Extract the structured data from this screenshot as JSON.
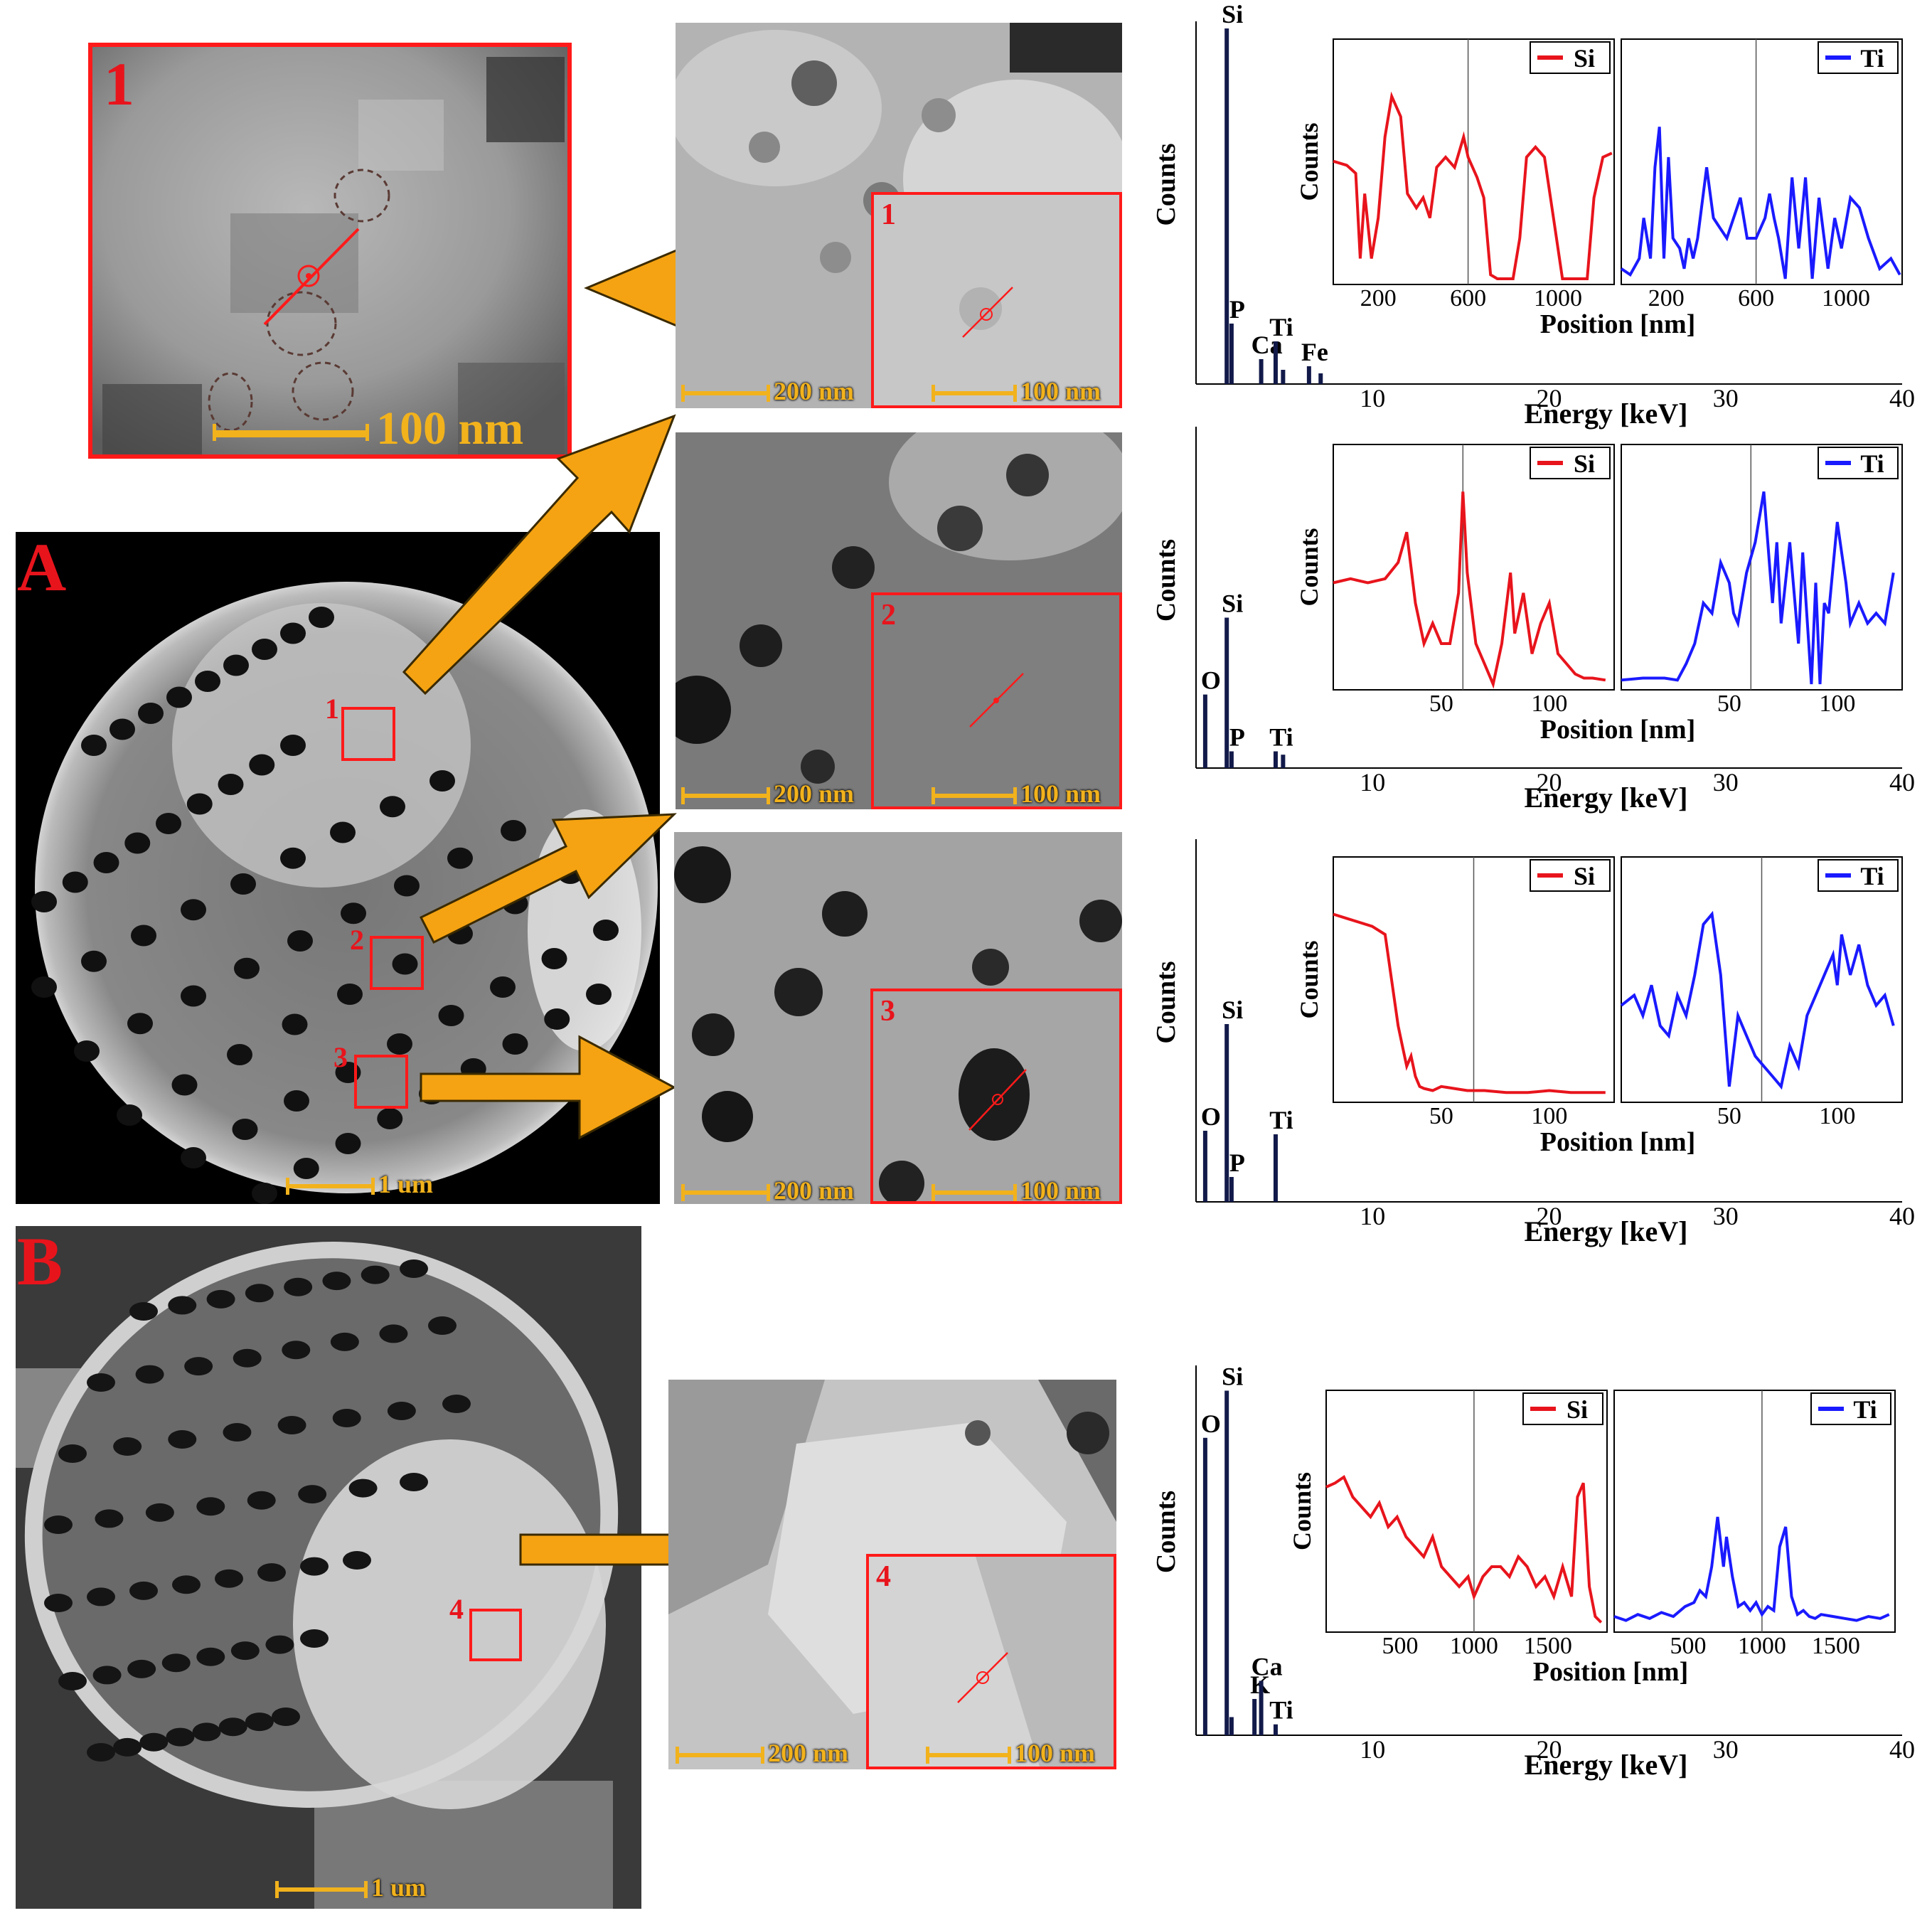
{
  "panels": {
    "A_label": "A",
    "B_label": "B",
    "zoom_label": "1",
    "zoom_scale": "100 nm",
    "overview_A_scale": "1 um",
    "overview_B_scale": "1 um",
    "region_labels": [
      "1",
      "2",
      "3",
      "4"
    ],
    "mid_scale_large": "200 nm",
    "mid_scale_small": "100 nm"
  },
  "chart_data": [
    {
      "type": "bar",
      "title": "",
      "xlabel": "Energy [keV]",
      "ylabel": "Counts",
      "xlim": [
        0,
        40
      ],
      "xticks": [
        10,
        20,
        30,
        40
      ],
      "peaks": [
        {
          "label": "Si",
          "energy": 1.74,
          "value": 1.0
        },
        {
          "label": "P",
          "energy": 2.01,
          "value": 0.17
        },
        {
          "label": "Ca",
          "energy": 3.69,
          "value": 0.07
        },
        {
          "label": "Ti",
          "energy": 4.51,
          "value": 0.12
        },
        {
          "label": "",
          "energy": 4.93,
          "value": 0.04
        },
        {
          "label": "Fe",
          "energy": 6.4,
          "value": 0.05
        },
        {
          "label": "",
          "energy": 7.06,
          "value": 0.03
        }
      ],
      "insets": [
        {
          "type": "line",
          "series": [
            {
              "name": "Si",
              "color": "#e8141c"
            }
          ],
          "xlabel": "Position [nm]",
          "ylabel": "Counts",
          "xlim": [
            0,
            1250
          ],
          "xticks": [
            200,
            600,
            1000
          ],
          "marker_x": 600,
          "x": [
            0,
            60,
            100,
            120,
            140,
            170,
            200,
            230,
            260,
            300,
            330,
            370,
            400,
            430,
            460,
            500,
            540,
            580,
            600,
            640,
            670,
            700,
            730,
            770,
            800,
            830,
            860,
            900,
            940,
            980,
            1020,
            1060,
            1100,
            1130,
            1160,
            1200,
            1240
          ],
          "y": [
            0.58,
            0.56,
            0.52,
            0.1,
            0.42,
            0.1,
            0.3,
            0.7,
            0.9,
            0.8,
            0.42,
            0.35,
            0.4,
            0.3,
            0.55,
            0.6,
            0.55,
            0.7,
            0.6,
            0.5,
            0.4,
            0.02,
            0.0,
            0.0,
            0.0,
            0.2,
            0.6,
            0.65,
            0.6,
            0.3,
            0.0,
            0.0,
            0.0,
            0.0,
            0.4,
            0.6,
            0.62
          ]
        },
        {
          "type": "line",
          "series": [
            {
              "name": "Ti",
              "color": "#1a1aff"
            }
          ],
          "xlabel": "Position [nm]",
          "ylabel": "Counts",
          "xlim": [
            0,
            1250
          ],
          "xticks": [
            200,
            600,
            1000
          ],
          "marker_x": 600,
          "x": [
            0,
            40,
            80,
            100,
            130,
            150,
            170,
            190,
            210,
            230,
            260,
            280,
            300,
            320,
            340,
            380,
            410,
            440,
            470,
            500,
            530,
            560,
            600,
            640,
            660,
            680,
            700,
            730,
            760,
            790,
            820,
            850,
            880,
            920,
            950,
            980,
            1020,
            1060,
            1100,
            1150,
            1200,
            1240
          ],
          "y": [
            0.05,
            0.02,
            0.1,
            0.3,
            0.1,
            0.55,
            0.75,
            0.1,
            0.6,
            0.2,
            0.15,
            0.05,
            0.2,
            0.1,
            0.2,
            0.55,
            0.3,
            0.25,
            0.2,
            0.3,
            0.4,
            0.2,
            0.2,
            0.3,
            0.42,
            0.3,
            0.2,
            0.0,
            0.5,
            0.15,
            0.5,
            0.0,
            0.4,
            0.05,
            0.3,
            0.15,
            0.4,
            0.35,
            0.2,
            0.05,
            0.1,
            0.02
          ]
        }
      ]
    },
    {
      "type": "bar",
      "title": "",
      "xlabel": "Energy [keV]",
      "ylabel": "Counts",
      "xlim": [
        0,
        40
      ],
      "xticks": [
        10,
        20,
        30,
        40
      ],
      "peaks": [
        {
          "label": "O",
          "energy": 0.52,
          "value": 0.22
        },
        {
          "label": "Si",
          "energy": 1.74,
          "value": 0.45
        },
        {
          "label": "P",
          "energy": 2.01,
          "value": 0.05
        },
        {
          "label": "Ti",
          "energy": 4.51,
          "value": 0.05
        },
        {
          "label": "",
          "energy": 4.93,
          "value": 0.04
        }
      ],
      "insets": [
        {
          "type": "line",
          "series": [
            {
              "name": "Si",
              "color": "#e8141c"
            }
          ],
          "xlabel": "Position [nm]",
          "ylabel": "Counts",
          "xlim": [
            0,
            130
          ],
          "xticks": [
            50,
            100
          ],
          "marker_x": 60,
          "x": [
            0,
            8,
            16,
            24,
            30,
            34,
            38,
            42,
            46,
            50,
            54,
            58,
            60,
            62,
            66,
            70,
            74,
            78,
            82,
            84,
            88,
            92,
            96,
            100,
            104,
            108,
            112,
            116,
            120,
            126
          ],
          "y": [
            0.5,
            0.52,
            0.5,
            0.52,
            0.6,
            0.75,
            0.4,
            0.2,
            0.3,
            0.2,
            0.2,
            0.45,
            0.95,
            0.55,
            0.2,
            0.1,
            0.0,
            0.2,
            0.55,
            0.25,
            0.45,
            0.15,
            0.3,
            0.4,
            0.15,
            0.1,
            0.05,
            0.03,
            0.03,
            0.02
          ]
        },
        {
          "type": "line",
          "series": [
            {
              "name": "Ti",
              "color": "#1a1aff"
            }
          ],
          "xlabel": "Position [nm]",
          "ylabel": "Counts",
          "xlim": [
            0,
            130
          ],
          "xticks": [
            50,
            100
          ],
          "marker_x": 60,
          "x": [
            0,
            10,
            20,
            26,
            30,
            34,
            38,
            42,
            46,
            50,
            52,
            54,
            58,
            62,
            66,
            70,
            72,
            74,
            78,
            82,
            84,
            88,
            90,
            92,
            94,
            96,
            100,
            104,
            106,
            110,
            114,
            118,
            122,
            126
          ],
          "y": [
            0.02,
            0.03,
            0.03,
            0.02,
            0.1,
            0.2,
            0.4,
            0.35,
            0.6,
            0.5,
            0.35,
            0.3,
            0.55,
            0.7,
            0.95,
            0.4,
            0.7,
            0.3,
            0.7,
            0.2,
            0.65,
            0.0,
            0.5,
            0.0,
            0.4,
            0.35,
            0.8,
            0.5,
            0.3,
            0.4,
            0.3,
            0.35,
            0.3,
            0.55
          ]
        }
      ]
    },
    {
      "type": "bar",
      "title": "",
      "xlabel": "Energy [keV]",
      "ylabel": "Counts",
      "xlim": [
        0,
        40
      ],
      "xticks": [
        10,
        20,
        30,
        40
      ],
      "peaks": [
        {
          "label": "O",
          "energy": 0.52,
          "value": 0.2
        },
        {
          "label": "Si",
          "energy": 1.74,
          "value": 0.5
        },
        {
          "label": "P",
          "energy": 2.01,
          "value": 0.07
        },
        {
          "label": "Ti",
          "energy": 4.51,
          "value": 0.19
        }
      ],
      "insets": [
        {
          "type": "line",
          "series": [
            {
              "name": "Si",
              "color": "#e8141c"
            }
          ],
          "xlabel": "Position [nm]",
          "ylabel": "Counts",
          "xlim": [
            0,
            130
          ],
          "xticks": [
            50,
            100
          ],
          "marker_x": 65,
          "x": [
            0,
            6,
            12,
            18,
            24,
            28,
            30,
            32,
            34,
            36,
            38,
            40,
            42,
            46,
            50,
            56,
            62,
            70,
            80,
            90,
            100,
            110,
            120,
            126
          ],
          "y": [
            0.9,
            0.88,
            0.86,
            0.84,
            0.8,
            0.5,
            0.35,
            0.25,
            0.15,
            0.2,
            0.1,
            0.05,
            0.04,
            0.03,
            0.05,
            0.04,
            0.03,
            0.03,
            0.02,
            0.02,
            0.03,
            0.02,
            0.02,
            0.02
          ]
        },
        {
          "type": "line",
          "series": [
            {
              "name": "Ti",
              "color": "#1a1aff"
            }
          ],
          "xlabel": "Position [nm]",
          "ylabel": "Counts",
          "xlim": [
            0,
            130
          ],
          "xticks": [
            50,
            100
          ],
          "marker_x": 65,
          "x": [
            0,
            6,
            10,
            14,
            18,
            22,
            26,
            30,
            34,
            38,
            42,
            46,
            50,
            54,
            58,
            62,
            66,
            70,
            74,
            78,
            82,
            86,
            90,
            94,
            98,
            100,
            102,
            106,
            110,
            114,
            118,
            122,
            126
          ],
          "y": [
            0.45,
            0.5,
            0.4,
            0.55,
            0.35,
            0.3,
            0.5,
            0.4,
            0.6,
            0.85,
            0.9,
            0.6,
            0.05,
            0.4,
            0.3,
            0.2,
            0.15,
            0.1,
            0.05,
            0.25,
            0.15,
            0.4,
            0.5,
            0.6,
            0.7,
            0.55,
            0.8,
            0.6,
            0.75,
            0.55,
            0.45,
            0.5,
            0.35
          ]
        }
      ]
    },
    {
      "type": "bar",
      "title": "",
      "xlabel": "Energy [keV]",
      "ylabel": "Counts",
      "xlim": [
        0,
        40
      ],
      "xticks": [
        10,
        20,
        30,
        40
      ],
      "peaks": [
        {
          "label": "O",
          "energy": 0.52,
          "value": 0.82
        },
        {
          "label": "Si",
          "energy": 1.74,
          "value": 0.95
        },
        {
          "label": "",
          "energy": 2.01,
          "value": 0.05
        },
        {
          "label": "K",
          "energy": 3.31,
          "value": 0.1
        },
        {
          "label": "Ca",
          "energy": 3.69,
          "value": 0.15
        },
        {
          "label": "Ti",
          "energy": 4.51,
          "value": 0.03
        }
      ],
      "insets": [
        {
          "type": "line",
          "series": [
            {
              "name": "Si",
              "color": "#e8141c"
            }
          ],
          "xlabel": "Position [nm]",
          "ylabel": "Counts",
          "xlim": [
            0,
            1900
          ],
          "xticks": [
            500,
            1000,
            1500
          ],
          "marker_x": 1000,
          "x": [
            0,
            60,
            120,
            180,
            240,
            300,
            360,
            420,
            480,
            540,
            600,
            660,
            720,
            780,
            840,
            900,
            960,
            1000,
            1060,
            1120,
            1180,
            1240,
            1300,
            1360,
            1420,
            1480,
            1540,
            1600,
            1660,
            1700,
            1740,
            1780,
            1820,
            1860
          ],
          "y": [
            0.7,
            0.72,
            0.75,
            0.65,
            0.6,
            0.55,
            0.62,
            0.5,
            0.55,
            0.45,
            0.4,
            0.35,
            0.45,
            0.3,
            0.25,
            0.2,
            0.25,
            0.15,
            0.25,
            0.3,
            0.3,
            0.25,
            0.35,
            0.3,
            0.2,
            0.25,
            0.15,
            0.3,
            0.15,
            0.65,
            0.72,
            0.2,
            0.05,
            0.02
          ]
        },
        {
          "type": "line",
          "series": [
            {
              "name": "Ti",
              "color": "#1a1aff"
            }
          ],
          "xlabel": "Position [nm]",
          "ylabel": "Counts",
          "xlim": [
            0,
            1900
          ],
          "xticks": [
            500,
            1000,
            1500
          ],
          "marker_x": 1000,
          "x": [
            0,
            80,
            160,
            240,
            320,
            400,
            480,
            540,
            580,
            620,
            660,
            700,
            740,
            760,
            800,
            840,
            880,
            920,
            960,
            1000,
            1040,
            1080,
            1120,
            1160,
            1200,
            1240,
            1280,
            1320,
            1360,
            1400,
            1480,
            1560,
            1640,
            1720,
            1800,
            1860
          ],
          "y": [
            0.05,
            0.03,
            0.06,
            0.04,
            0.07,
            0.05,
            0.1,
            0.12,
            0.18,
            0.15,
            0.3,
            0.55,
            0.3,
            0.45,
            0.25,
            0.1,
            0.12,
            0.08,
            0.12,
            0.06,
            0.1,
            0.08,
            0.4,
            0.5,
            0.15,
            0.06,
            0.08,
            0.05,
            0.04,
            0.06,
            0.05,
            0.04,
            0.03,
            0.05,
            0.04,
            0.06
          ]
        }
      ]
    }
  ]
}
